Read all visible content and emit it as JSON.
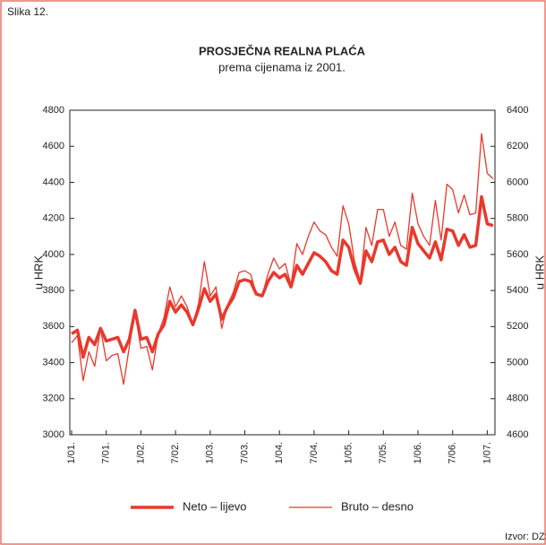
{
  "chart_data": {
    "type": "line",
    "figure_label": "Slika 12.",
    "title": "PROSJEČNA REALNA PLAĆA",
    "subtitle": "prema cijenama iz 2001.",
    "ylabel": "u HRK",
    "y2label": "u HRK",
    "source": "Izvor: DZS",
    "categories": [
      "1/01.",
      null,
      null,
      null,
      null,
      null,
      "7/01.",
      null,
      null,
      null,
      null,
      null,
      "1/02.",
      null,
      null,
      null,
      null,
      null,
      "7/02.",
      null,
      null,
      null,
      null,
      null,
      "1/03.",
      null,
      null,
      null,
      null,
      null,
      "7/03.",
      null,
      null,
      null,
      null,
      null,
      "1/04.",
      null,
      null,
      null,
      null,
      null,
      "7/04.",
      null,
      null,
      null,
      null,
      null,
      "1/05.",
      null,
      null,
      null,
      null,
      null,
      "7/05.",
      null,
      null,
      null,
      null,
      null,
      "1/06.",
      null,
      null,
      null,
      null,
      null,
      "7/06.",
      null,
      null,
      null,
      null,
      null,
      "1/07.",
      null
    ],
    "series": [
      {
        "name": "Neto – lijevo",
        "color": "#e8392c",
        "width": 3.5,
        "axis": "y",
        "values": [
          3560,
          3580,
          3430,
          3540,
          3500,
          3590,
          3520,
          3530,
          3540,
          3460,
          3530,
          3690,
          3530,
          3540,
          3460,
          3560,
          3610,
          3740,
          3680,
          3720,
          3680,
          3610,
          3700,
          3810,
          3740,
          3780,
          3640,
          3710,
          3760,
          3850,
          3860,
          3850,
          3780,
          3770,
          3850,
          3900,
          3870,
          3890,
          3820,
          3940,
          3890,
          3950,
          4010,
          3990,
          3960,
          3910,
          3890,
          4080,
          4040,
          3920,
          3840,
          4020,
          3960,
          4070,
          4080,
          4000,
          4040,
          3960,
          3940,
          4150,
          4060,
          4020,
          3980,
          4070,
          3970,
          4140,
          4130,
          4050,
          4110,
          4040,
          4050,
          4320,
          4170,
          4160
        ]
      },
      {
        "name": "Bruto – desno",
        "color": "#e8392c",
        "width": 1.3,
        "axis": "y2",
        "values": [
          5110,
          5150,
          4900,
          5060,
          4980,
          5190,
          5010,
          5040,
          5050,
          4880,
          5090,
          5280,
          5080,
          5090,
          4960,
          5160,
          5250,
          5420,
          5310,
          5370,
          5310,
          5210,
          5330,
          5560,
          5370,
          5420,
          5190,
          5320,
          5390,
          5500,
          5510,
          5490,
          5380,
          5370,
          5490,
          5580,
          5520,
          5550,
          5430,
          5660,
          5600,
          5700,
          5780,
          5730,
          5710,
          5640,
          5590,
          5870,
          5770,
          5560,
          5450,
          5750,
          5650,
          5850,
          5850,
          5700,
          5780,
          5650,
          5630,
          5940,
          5770,
          5700,
          5650,
          5900,
          5680,
          5990,
          5960,
          5830,
          5930,
          5820,
          5830,
          6270,
          6050,
          6020
        ]
      }
    ],
    "ylim": [
      3000,
      4800
    ],
    "yticks": [
      3000,
      3200,
      3400,
      3600,
      3800,
      4000,
      4200,
      4400,
      4600,
      4800
    ],
    "y2lim": [
      4600,
      6400
    ],
    "y2ticks": [
      4600,
      4800,
      5000,
      5200,
      5400,
      5600,
      5800,
      6000,
      6200,
      6400
    ],
    "grid": false
  }
}
